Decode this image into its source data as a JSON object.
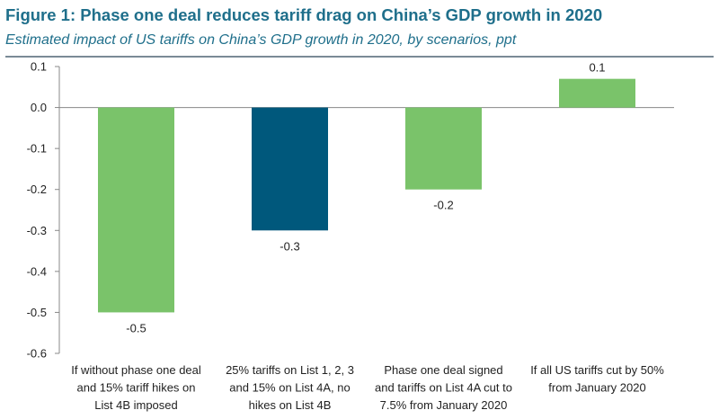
{
  "title": "Figure 1: Phase one deal reduces tariff drag on China’s GDP growth in 2020",
  "subtitle": "Estimated impact of US tariffs on China’s GDP growth in 2020, by scenarios, ppt",
  "colors": {
    "title": "#1f6f8b",
    "green": "#7ac36a",
    "navy": "#00587c",
    "axis": "#888888"
  },
  "chart_data": {
    "type": "bar",
    "categories": [
      [
        "If without phase one deal",
        "and 15% tariff hikes on",
        "List 4B imposed"
      ],
      [
        "25% tariffs on List 1, 2, 3",
        "and 15% on List 4A, no",
        "hikes on List 4B"
      ],
      [
        "Phase one deal signed",
        "and tariffs on List 4A cut to",
        "7.5% from January 2020"
      ],
      [
        "If all US tariffs cut by 50%",
        "from January 2020"
      ]
    ],
    "values": [
      -0.5,
      -0.3,
      -0.2,
      0.07
    ],
    "data_labels": [
      "-0.5",
      "-0.3",
      "-0.2",
      "0.1"
    ],
    "bar_colors": [
      "green",
      "navy",
      "green",
      "green"
    ],
    "ylim": [
      -0.6,
      0.1
    ],
    "yticks": [
      0.1,
      0.0,
      -0.1,
      -0.2,
      -0.3,
      -0.4,
      -0.5,
      -0.6
    ],
    "ytick_labels": [
      "0.1",
      "0.0",
      "-0.1",
      "-0.2",
      "-0.3",
      "-0.4",
      "-0.5",
      "-0.6"
    ],
    "grid": false,
    "legend": "none"
  }
}
